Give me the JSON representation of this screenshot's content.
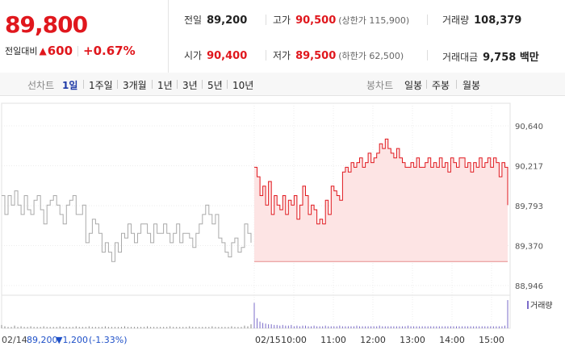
{
  "summary": {
    "price": "89,800",
    "change_label": "전일대비",
    "change_icon": "up-triangle-icon",
    "change_amount": "600",
    "change_pct": "+0.67%"
  },
  "stats": {
    "prev_close_label": "전일",
    "prev_close": "89,200",
    "high_label": "고가",
    "high": "90,500",
    "upper_limit": "(상한가 115,900)",
    "volume_label": "거래량",
    "volume": "108,379",
    "open_label": "시가",
    "open": "90,400",
    "low_label": "저가",
    "low": "89,500",
    "lower_limit": "(하한가 62,500)",
    "value_label": "거래대금",
    "value": "9,758 백만"
  },
  "tabs": {
    "line_header": "선차트",
    "line_periods": [
      "1일",
      "1주일",
      "3개월",
      "1년",
      "3년",
      "5년",
      "10년"
    ],
    "active_period": "1일",
    "candle_header": "봉차트",
    "candle_periods": [
      "일봉",
      "주봉",
      "월봉"
    ]
  },
  "colors": {
    "up": "#e0171d",
    "down": "#1e50c8",
    "prev_line": "#aaaaaa",
    "fill": "#fde4e4",
    "volume_prev": "#8a8a8a",
    "volume_today": "#7b6cc9"
  },
  "chart_data": {
    "type": "line",
    "ylim": [
      88946,
      90640
    ],
    "yticks": [
      "90,640",
      "90,217",
      "89,793",
      "89,370",
      "88,946"
    ],
    "ytick_values": [
      90640,
      90217,
      89793,
      89370,
      88946
    ],
    "xticks": [
      "02/15",
      "10:00",
      "11:00",
      "12:00",
      "13:00",
      "14:00",
      "15:00"
    ],
    "prev_day_label": "02/14",
    "prev_day_close": "89,200",
    "prev_day_change": "▼1,200",
    "prev_day_pct": "(-1.33%)",
    "baseline": 89200,
    "volume_label": "거래량",
    "series": [
      {
        "day": "02/14",
        "values": [
          89900,
          89700,
          89900,
          89800,
          89950,
          89800,
          89700,
          89900,
          89750,
          89700,
          89850,
          89900,
          89750,
          89600,
          89800,
          89850,
          89900,
          89800,
          89700,
          89600,
          89800,
          89850,
          89900,
          89700,
          89700,
          89800,
          89400,
          89500,
          89650,
          89600,
          89500,
          89300,
          89400,
          89300,
          89200,
          89400,
          89300,
          89500,
          89450,
          89600,
          89500,
          89400,
          89500,
          89600,
          89600,
          89500,
          89400,
          89600,
          89500,
          89500,
          89600,
          89500,
          89400,
          89500,
          89600,
          89400,
          89500,
          89500,
          89450,
          89350,
          89500,
          89600,
          89700,
          89800,
          89700,
          89600,
          89700,
          89450,
          89400,
          89300,
          89250,
          89400,
          89450,
          89300,
          89350,
          89600,
          89500,
          89400
        ]
      },
      {
        "day": "02/15",
        "values": [
          90200,
          90100,
          89900,
          90000,
          89800,
          90050,
          89700,
          89900,
          89800,
          89750,
          89900,
          89700,
          89850,
          89800,
          89900,
          89650,
          89800,
          90000,
          89900,
          89700,
          89800,
          89750,
          89600,
          89650,
          89600,
          89850,
          89700,
          90000,
          89950,
          89900,
          89850,
          90150,
          90200,
          90150,
          90250,
          90200,
          90250,
          90300,
          90200,
          90250,
          90350,
          90250,
          90300,
          90350,
          90450,
          90400,
          90500,
          90400,
          90350,
          90300,
          90400,
          90300,
          90250,
          90200,
          90200,
          90250,
          90200,
          90300,
          90200,
          90200,
          90250,
          90300,
          90200,
          90250,
          90200,
          90300,
          90200,
          90250,
          90150,
          90300,
          90250,
          90200,
          90300,
          90300,
          90200,
          90250,
          90150,
          90250,
          90200,
          90300,
          90200,
          90250,
          90300,
          90200,
          90300,
          90250,
          90100,
          90250,
          90200,
          89800
        ]
      }
    ],
    "volume": {
      "02/14": [
        5,
        3,
        2,
        2,
        4,
        2,
        3,
        2,
        2,
        3,
        2,
        2,
        2,
        3,
        2,
        2,
        2,
        2,
        3,
        2,
        2,
        2,
        2,
        3,
        2,
        2,
        2,
        3,
        2,
        2,
        2,
        2,
        3,
        2,
        2,
        2,
        2,
        2,
        3,
        2,
        2,
        2,
        2,
        2,
        2,
        3,
        2,
        2,
        2,
        2,
        2,
        2,
        3,
        2,
        2,
        2,
        2,
        2,
        3,
        2,
        2,
        2,
        2,
        2,
        2,
        3,
        2,
        2,
        2,
        2,
        2,
        3,
        2,
        2,
        2,
        4,
        3,
        6
      ],
      "02/15": [
        38,
        15,
        10,
        8,
        7,
        6,
        6,
        5,
        5,
        4,
        5,
        4,
        4,
        5,
        3,
        4,
        3,
        4,
        4,
        3,
        3,
        4,
        3,
        3,
        3,
        4,
        3,
        3,
        3,
        3,
        4,
        3,
        3,
        3,
        3,
        3,
        4,
        3,
        3,
        3,
        3,
        3,
        3,
        3,
        4,
        3,
        3,
        3,
        3,
        3,
        3,
        3,
        3,
        3,
        4,
        3,
        3,
        3,
        3,
        3,
        3,
        3,
        3,
        3,
        3,
        3,
        3,
        3,
        3,
        3,
        3,
        3,
        3,
        3,
        3,
        3,
        3,
        3,
        3,
        3,
        3,
        3,
        3,
        3,
        3,
        3,
        3,
        3,
        4,
        42
      ]
    }
  }
}
